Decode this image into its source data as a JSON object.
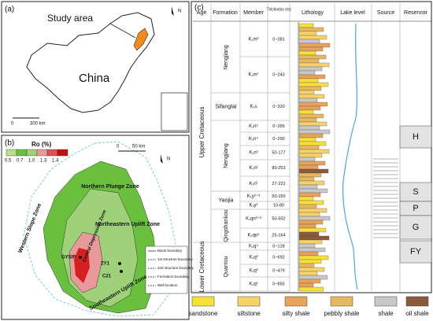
{
  "panel_a": {
    "label": "(a)",
    "study_area": "Study area",
    "country": "China",
    "scale_start": "0",
    "scale_end": "300 km",
    "north": "N"
  },
  "panel_b": {
    "label": "(b)",
    "ro_title": "Ro (%)",
    "ro_scale": [
      "0.5",
      "0.7",
      "1.0",
      "1.3",
      "1.4"
    ],
    "scale_start": "0",
    "scale_end": "50 km",
    "north": "N",
    "zones": [
      "Northern Plunge Zone",
      "Western Slope Zone",
      "Central Depression Zone",
      "Northeastern Uplift Zone",
      "Southeastern Uplift Zone"
    ],
    "wells": [
      "GYSIP",
      "ZY1",
      "C21"
    ],
    "legend": [
      "Basin boundary",
      "1st structure boundary",
      "2nd structure boundary",
      "Formation boundary",
      "Well location"
    ]
  },
  "panel_c": {
    "label": "(c)",
    "headers": [
      "Age",
      "Formation",
      "Member",
      "Thickness (m)",
      "Lithology",
      "Lake level",
      "Source",
      "Reservoir"
    ],
    "ages": [
      "Upper Cretaceous",
      "Lower Cretaceous"
    ],
    "formations": [
      "Nengjiang",
      "Sifangtai",
      "Nengjiang",
      "Yaojia",
      "Qingshankou",
      "Quantou"
    ],
    "members": [
      "K₁m²",
      "K₁m¹",
      "K₁s",
      "K₁n⁵",
      "K₁n⁴",
      "K₁n³",
      "K₁n²",
      "K₁n¹",
      "K₁y²⁺³",
      "K₁y¹",
      "K₁qn²⁺³",
      "K₁qn¹",
      "K₁q⁴",
      "K₁q³",
      "K₁q²",
      "K₁q¹"
    ],
    "thickness": [
      "0~381",
      "0~243",
      "0~320",
      "0~355",
      "0~290",
      "50-177",
      "80-253",
      "27-222",
      "50-150",
      "10-80",
      "50-552",
      "25-164",
      "0~128",
      "0~692",
      "0~479",
      "0~855"
    ],
    "reservoirs": [
      "H",
      "S",
      "P",
      "G",
      "FY"
    ],
    "legend": [
      "sandstone",
      "siltstone",
      "silty shale",
      "pebbly shale",
      "shale",
      "oil shale"
    ]
  }
}
